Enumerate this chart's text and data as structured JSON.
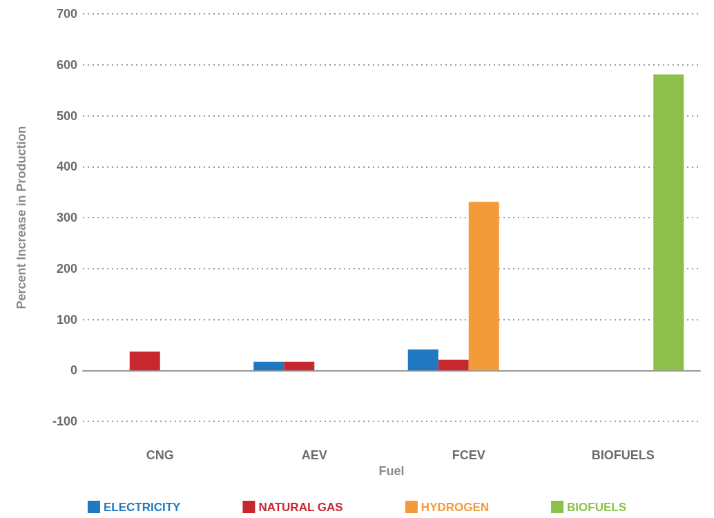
{
  "chart_data": {
    "type": "bar",
    "xlabel": "Fuel",
    "ylabel": "Percent Increase in Production",
    "categories": [
      "CNG",
      "AEV",
      "FCEV",
      "BIOFUELS"
    ],
    "series": [
      {
        "name": "ELECTRICITY",
        "color": "#1f78c1",
        "values": [
          null,
          17,
          41,
          null
        ]
      },
      {
        "name": "NATURAL GAS",
        "color": "#c7282f",
        "values": [
          37,
          17,
          21,
          null
        ]
      },
      {
        "name": "HYDROGEN",
        "color": "#f39a3a",
        "values": [
          null,
          null,
          331,
          null
        ]
      },
      {
        "name": "BIOFUELS",
        "color": "#8cc04a",
        "values": [
          null,
          null,
          null,
          581
        ]
      }
    ],
    "ylim": [
      -100,
      700
    ],
    "yticks": [
      -100,
      0,
      100,
      200,
      300,
      400,
      500,
      600,
      700
    ],
    "grid": "y",
    "legend": "bottom"
  }
}
